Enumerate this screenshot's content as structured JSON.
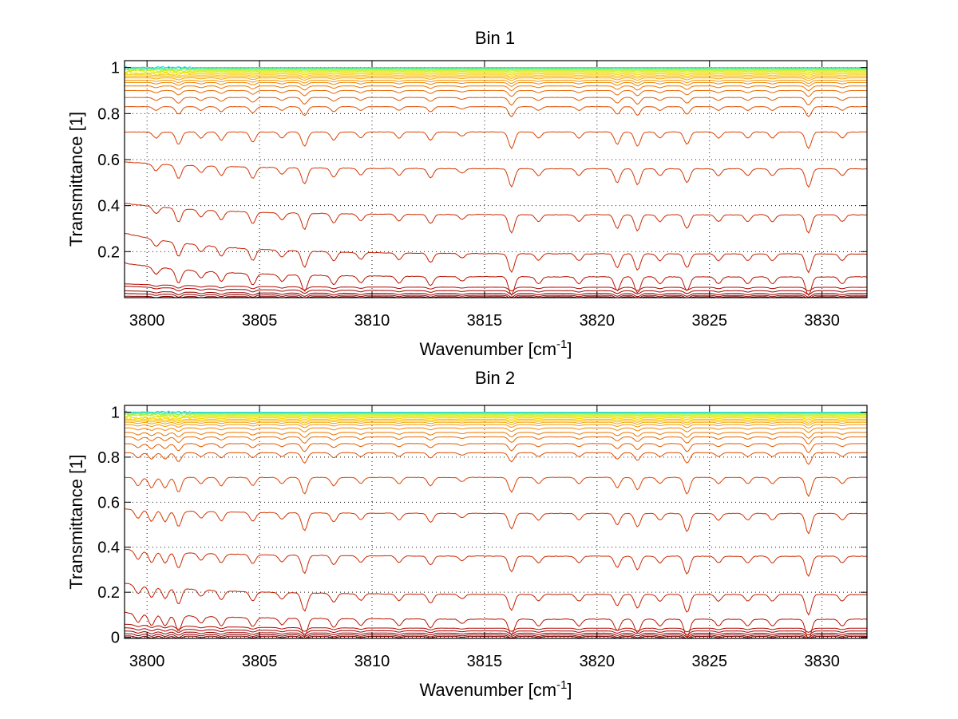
{
  "chart_data": [
    {
      "type": "line",
      "title": "Bin 1",
      "xlabel": "Wavenumber [cm",
      "xlabel_sup": "-1",
      "xlabel_end": "]",
      "ylabel": "Transmittance [1]",
      "xlim": [
        3799,
        3832
      ],
      "ylim": [
        0,
        1.03
      ],
      "grid": true,
      "x_ticks": [
        3800,
        3805,
        3810,
        3815,
        3820,
        3825,
        3830
      ],
      "x_tick_labels": [
        "3800",
        "3805",
        "3810",
        "3815",
        "3820",
        "3825",
        "3830"
      ],
      "y_ticks": [
        0.2,
        0.4,
        0.6,
        0.8,
        1
      ],
      "y_tick_labels": [
        "0.2",
        "0.4",
        "0.6",
        "0.8",
        "1"
      ],
      "line_absorption_centers": [
        3800.4,
        3801.4,
        3802.4,
        3803.3,
        3804.7,
        3806.0,
        3807.0,
        3808.3,
        3809.5,
        3811.2,
        3812.6,
        3814.0,
        3816.2,
        3817.4,
        3819.2,
        3820.9,
        3821.8,
        3822.8,
        3824.0,
        3825.4,
        3826.7,
        3827.8,
        3829.4,
        3830.9
      ],
      "line_absorption_depths": [
        0.03,
        0.06,
        0.03,
        0.04,
        0.05,
        0.03,
        0.07,
        0.04,
        0.03,
        0.03,
        0.04,
        0.02,
        0.08,
        0.03,
        0.03,
        0.06,
        0.07,
        0.03,
        0.06,
        0.03,
        0.03,
        0.03,
        0.08,
        0.03
      ],
      "series_levels": [
        0.004,
        0.01,
        0.018,
        0.03,
        0.045,
        0.09,
        0.19,
        0.36,
        0.56,
        0.72,
        0.83,
        0.87,
        0.9,
        0.92,
        0.935,
        0.945,
        0.955,
        0.962,
        0.968,
        0.974,
        0.979,
        0.984,
        0.988,
        0.992,
        0.995,
        0.998,
        1.0
      ],
      "series_left_offsets": [
        0.002,
        0.008,
        0.012,
        0.02,
        0.015,
        0.06,
        0.09,
        0.05,
        0.03,
        0.0,
        0.0,
        0.0,
        0.0,
        0.0,
        0.0,
        0.0,
        0.0,
        0.0,
        0.0,
        0.0,
        0.0,
        0.0,
        0.0,
        0.0,
        0.0,
        0.0,
        0.0
      ],
      "series_colors": [
        "#7f0000",
        "#8a0000",
        "#960000",
        "#a30000",
        "#ae0a00",
        "#b81500",
        "#c42000",
        "#cc2a00",
        "#d43600",
        "#dc4200",
        "#e04e00",
        "#e45a00",
        "#e86800",
        "#ec7600",
        "#ef8400",
        "#f29400",
        "#f5a400",
        "#f7b400",
        "#f8c400",
        "#f8d400",
        "#f2e000",
        "#e0ea10",
        "#c2f020",
        "#a0f240",
        "#7cf070",
        "#40e8b0",
        "#20d8e0"
      ]
    },
    {
      "type": "line",
      "title": "Bin 2",
      "xlabel": "Wavenumber [cm",
      "xlabel_sup": "-1",
      "xlabel_end": "]",
      "ylabel": "Transmittance [1]",
      "xlim": [
        3799,
        3832
      ],
      "ylim": [
        -0.005,
        1.03
      ],
      "grid": true,
      "x_ticks": [
        3800,
        3805,
        3810,
        3815,
        3820,
        3825,
        3830
      ],
      "x_tick_labels": [
        "3800",
        "3805",
        "3810",
        "3815",
        "3820",
        "3825",
        "3830"
      ],
      "y_ticks": [
        0,
        0.2,
        0.4,
        0.6,
        0.8,
        1
      ],
      "y_tick_labels": [
        "0",
        "0.2",
        "0.4",
        "0.6",
        "0.8",
        "1"
      ],
      "line_absorption_centers": [
        3799.6,
        3800.2,
        3800.8,
        3801.4,
        3802.4,
        3803.3,
        3804.7,
        3806.0,
        3807.0,
        3808.3,
        3809.5,
        3811.2,
        3812.6,
        3814.0,
        3816.2,
        3817.4,
        3819.2,
        3820.9,
        3821.8,
        3822.8,
        3824.0,
        3825.4,
        3826.7,
        3827.8,
        3829.4,
        3830.9
      ],
      "line_absorption_depths": [
        0.04,
        0.05,
        0.05,
        0.07,
        0.03,
        0.04,
        0.04,
        0.03,
        0.08,
        0.04,
        0.03,
        0.03,
        0.04,
        0.02,
        0.07,
        0.03,
        0.03,
        0.05,
        0.06,
        0.03,
        0.08,
        0.03,
        0.03,
        0.03,
        0.09,
        0.03
      ],
      "series_levels": [
        0.004,
        0.01,
        0.018,
        0.028,
        0.04,
        0.08,
        0.19,
        0.36,
        0.55,
        0.71,
        0.82,
        0.86,
        0.89,
        0.91,
        0.93,
        0.945,
        0.955,
        0.962,
        0.968,
        0.974,
        0.979,
        0.984,
        0.988,
        0.992,
        0.995,
        0.998,
        1.0
      ],
      "series_left_offsets": [
        0.002,
        0.006,
        0.01,
        0.014,
        0.018,
        0.03,
        0.05,
        0.03,
        0.02,
        0.0,
        0.0,
        0.0,
        0.0,
        0.0,
        0.0,
        0.0,
        0.0,
        0.0,
        0.0,
        0.0,
        0.0,
        0.0,
        0.0,
        0.0,
        0.0,
        0.0,
        0.0
      ],
      "series_colors": [
        "#7f0000",
        "#8a0000",
        "#960000",
        "#a30000",
        "#ae0a00",
        "#b81500",
        "#c42000",
        "#cc2a00",
        "#d43600",
        "#dc4200",
        "#e04e00",
        "#e45a00",
        "#e86800",
        "#ec7600",
        "#ef8400",
        "#f29400",
        "#f5a400",
        "#f7b400",
        "#f8c400",
        "#f8d400",
        "#f2e000",
        "#e0ea10",
        "#c2f020",
        "#a0f240",
        "#7cf070",
        "#40e8b0",
        "#20d8e0"
      ]
    }
  ]
}
